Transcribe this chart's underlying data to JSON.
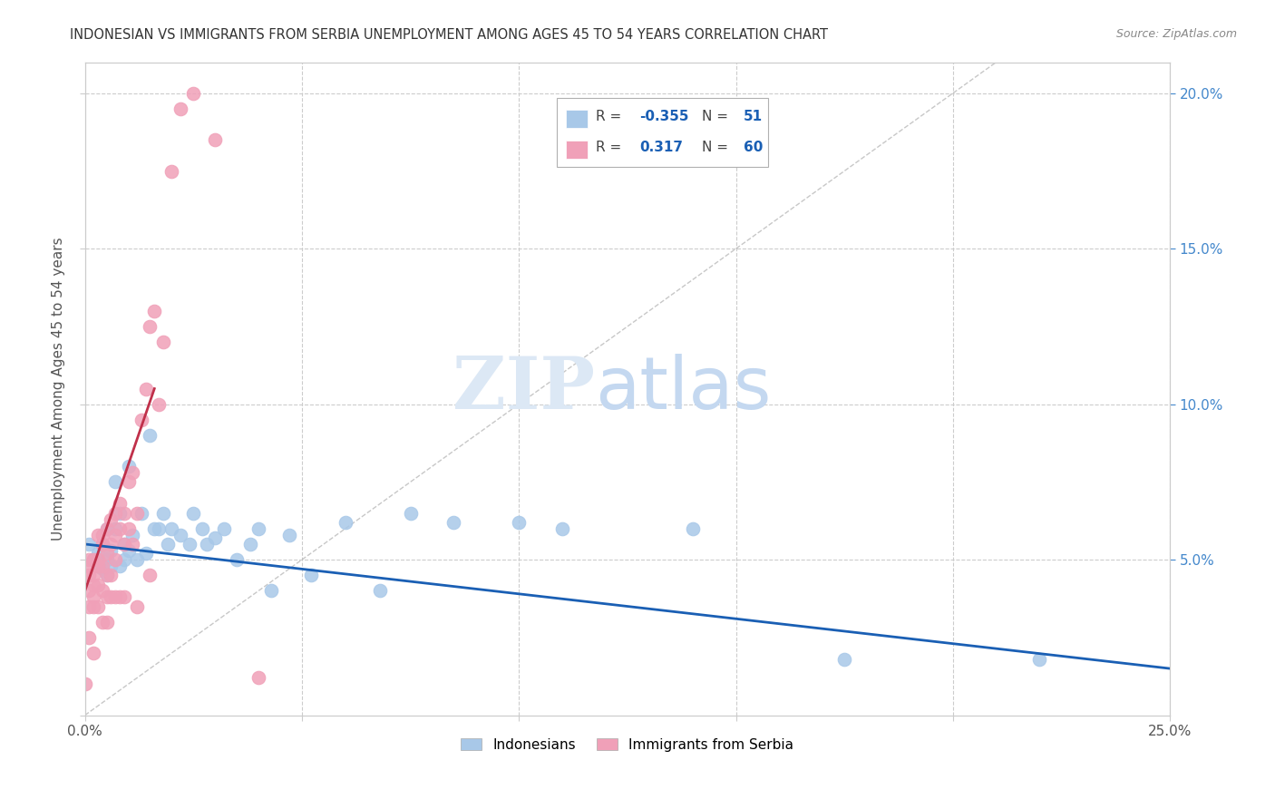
{
  "title": "INDONESIAN VS IMMIGRANTS FROM SERBIA UNEMPLOYMENT AMONG AGES 45 TO 54 YEARS CORRELATION CHART",
  "source": "Source: ZipAtlas.com",
  "ylabel": "Unemployment Among Ages 45 to 54 years",
  "xlim": [
    0.0,
    0.25
  ],
  "ylim": [
    0.0,
    0.21
  ],
  "blue_color": "#a8c8e8",
  "pink_color": "#f0a0b8",
  "blue_line_color": "#1a5fb4",
  "pink_line_color": "#c0304a",
  "dashed_line_color": "#b0b0b0",
  "legend_R_blue": "-0.355",
  "legend_N_blue": "51",
  "legend_R_pink": "0.317",
  "legend_N_pink": "60",
  "blue_scatter_x": [
    0.001,
    0.002,
    0.003,
    0.003,
    0.004,
    0.004,
    0.005,
    0.005,
    0.005,
    0.006,
    0.006,
    0.007,
    0.007,
    0.008,
    0.008,
    0.009,
    0.009,
    0.01,
    0.01,
    0.011,
    0.012,
    0.013,
    0.014,
    0.015,
    0.016,
    0.017,
    0.018,
    0.019,
    0.02,
    0.022,
    0.024,
    0.025,
    0.027,
    0.028,
    0.03,
    0.032,
    0.035,
    0.038,
    0.04,
    0.043,
    0.047,
    0.052,
    0.06,
    0.068,
    0.075,
    0.085,
    0.1,
    0.11,
    0.14,
    0.175,
    0.22
  ],
  "blue_scatter_y": [
    0.055,
    0.05,
    0.048,
    0.052,
    0.047,
    0.055,
    0.06,
    0.05,
    0.045,
    0.053,
    0.048,
    0.075,
    0.06,
    0.048,
    0.065,
    0.055,
    0.05,
    0.08,
    0.053,
    0.058,
    0.05,
    0.065,
    0.052,
    0.09,
    0.06,
    0.06,
    0.065,
    0.055,
    0.06,
    0.058,
    0.055,
    0.065,
    0.06,
    0.055,
    0.057,
    0.06,
    0.05,
    0.055,
    0.06,
    0.04,
    0.058,
    0.045,
    0.062,
    0.04,
    0.065,
    0.062,
    0.062,
    0.06,
    0.06,
    0.018,
    0.018
  ],
  "pink_scatter_x": [
    0.0,
    0.0,
    0.001,
    0.001,
    0.001,
    0.001,
    0.001,
    0.002,
    0.002,
    0.002,
    0.002,
    0.002,
    0.002,
    0.003,
    0.003,
    0.003,
    0.003,
    0.003,
    0.004,
    0.004,
    0.004,
    0.004,
    0.004,
    0.005,
    0.005,
    0.005,
    0.005,
    0.005,
    0.006,
    0.006,
    0.006,
    0.006,
    0.007,
    0.007,
    0.007,
    0.007,
    0.008,
    0.008,
    0.008,
    0.009,
    0.009,
    0.009,
    0.01,
    0.01,
    0.011,
    0.011,
    0.012,
    0.012,
    0.013,
    0.014,
    0.015,
    0.015,
    0.016,
    0.017,
    0.018,
    0.02,
    0.022,
    0.025,
    0.03,
    0.04
  ],
  "pink_scatter_y": [
    0.048,
    0.01,
    0.045,
    0.04,
    0.035,
    0.05,
    0.025,
    0.045,
    0.042,
    0.05,
    0.038,
    0.035,
    0.02,
    0.05,
    0.048,
    0.042,
    0.058,
    0.035,
    0.055,
    0.048,
    0.04,
    0.058,
    0.03,
    0.06,
    0.052,
    0.045,
    0.038,
    0.03,
    0.063,
    0.055,
    0.045,
    0.038,
    0.065,
    0.058,
    0.05,
    0.038,
    0.068,
    0.06,
    0.038,
    0.065,
    0.055,
    0.038,
    0.075,
    0.06,
    0.078,
    0.055,
    0.065,
    0.035,
    0.095,
    0.105,
    0.125,
    0.045,
    0.13,
    0.1,
    0.12,
    0.175,
    0.195,
    0.2,
    0.185,
    0.012
  ],
  "grid_color": "#cccccc",
  "background_color": "#ffffff",
  "title_color": "#333333",
  "source_color": "#888888",
  "right_axis_color": "#4488cc",
  "axis_label_color": "#555555"
}
